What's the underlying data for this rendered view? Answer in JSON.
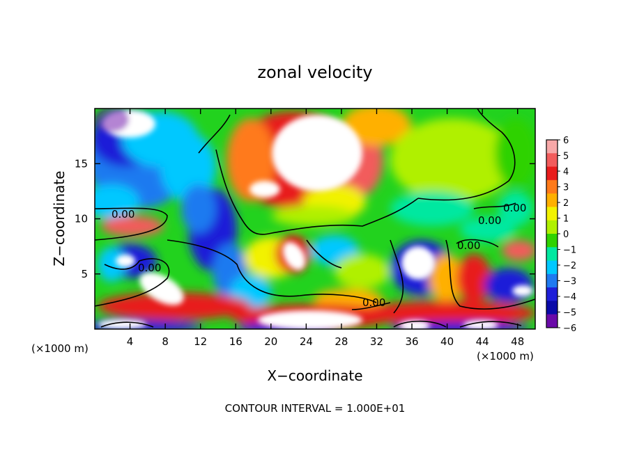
{
  "chart_data": {
    "type": "heatmap",
    "title": "zonal velocity",
    "xlabel": "X−coordinate",
    "ylabel": "Z−coordinate",
    "x_scale_note": "(×1000 m)",
    "y_scale_note": "(×1000 m)",
    "footer": "CONTOUR INTERVAL = 1.000E+01",
    "xlim": [
      0,
      50
    ],
    "ylim": [
      0,
      20
    ],
    "x_ticks": [
      4,
      8,
      12,
      16,
      20,
      24,
      28,
      32,
      36,
      40,
      44,
      48
    ],
    "y_ticks": [
      5,
      10,
      15
    ],
    "colorbar": {
      "min": -6,
      "max": 6,
      "ticks": [
        6,
        5,
        4,
        3,
        2,
        1,
        0,
        -1,
        -2,
        -3,
        -4,
        -5,
        -6
      ],
      "colors": [
        "#f7a8a8",
        "#f25c5c",
        "#e81c1c",
        "#ff7a1a",
        "#ffb000",
        "#f2f200",
        "#b0f000",
        "#2fd200",
        "#00e8a0",
        "#00c8ff",
        "#1f7af0",
        "#1f1fd8",
        "#0a0aa8",
        "#6a0aa8"
      ]
    },
    "contour_label": "0.00",
    "grid": false,
    "legend": "colorbar-right"
  }
}
